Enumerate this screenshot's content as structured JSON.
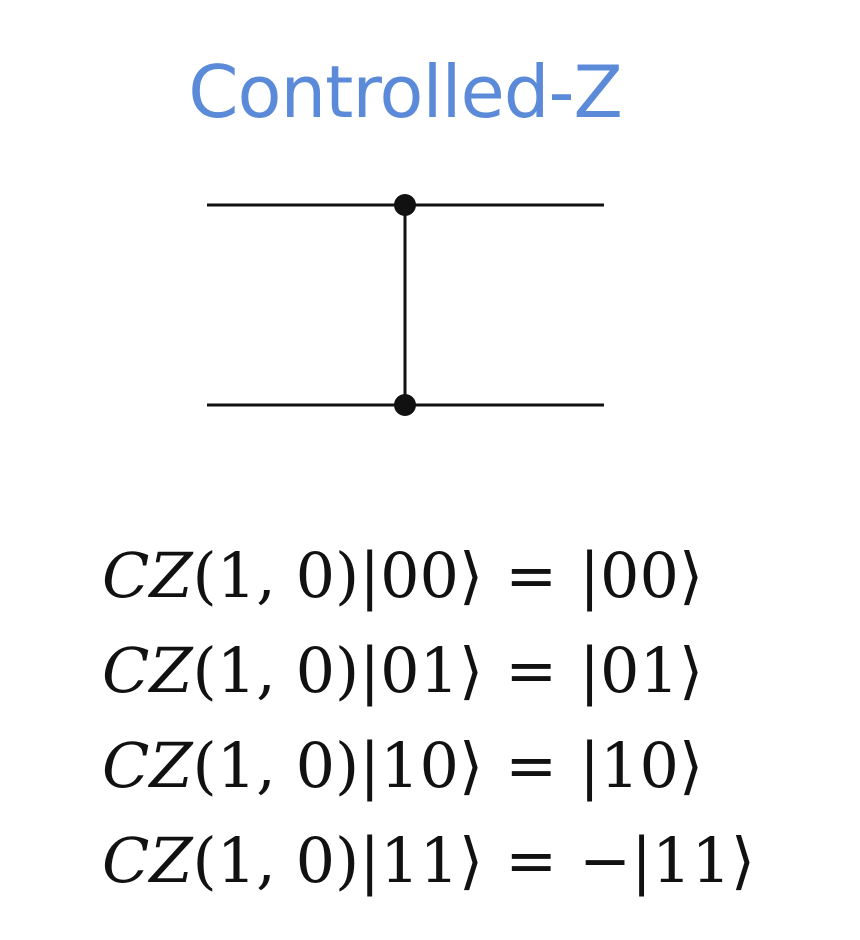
{
  "title": "Controlled-Z",
  "colors": {
    "title": "#5b8ad9",
    "ink": "#111111",
    "background": "#ffffff"
  },
  "equations": [
    {
      "lhs_gate": "CZ",
      "lhs_args": "(1, 0)",
      "lhs_ket": "|00⟩",
      "op": "=",
      "rhs": "|00⟩"
    },
    {
      "lhs_gate": "CZ",
      "lhs_args": "(1, 0)",
      "lhs_ket": "|01⟩",
      "op": "=",
      "rhs": "|01⟩"
    },
    {
      "lhs_gate": "CZ",
      "lhs_args": "(1, 0)",
      "lhs_ket": "|10⟩",
      "op": "=",
      "rhs": "|10⟩"
    },
    {
      "lhs_gate": "CZ",
      "lhs_args": "(1, 0)",
      "lhs_ket": "|11⟩",
      "op": "=",
      "rhs": "−|11⟩"
    }
  ]
}
